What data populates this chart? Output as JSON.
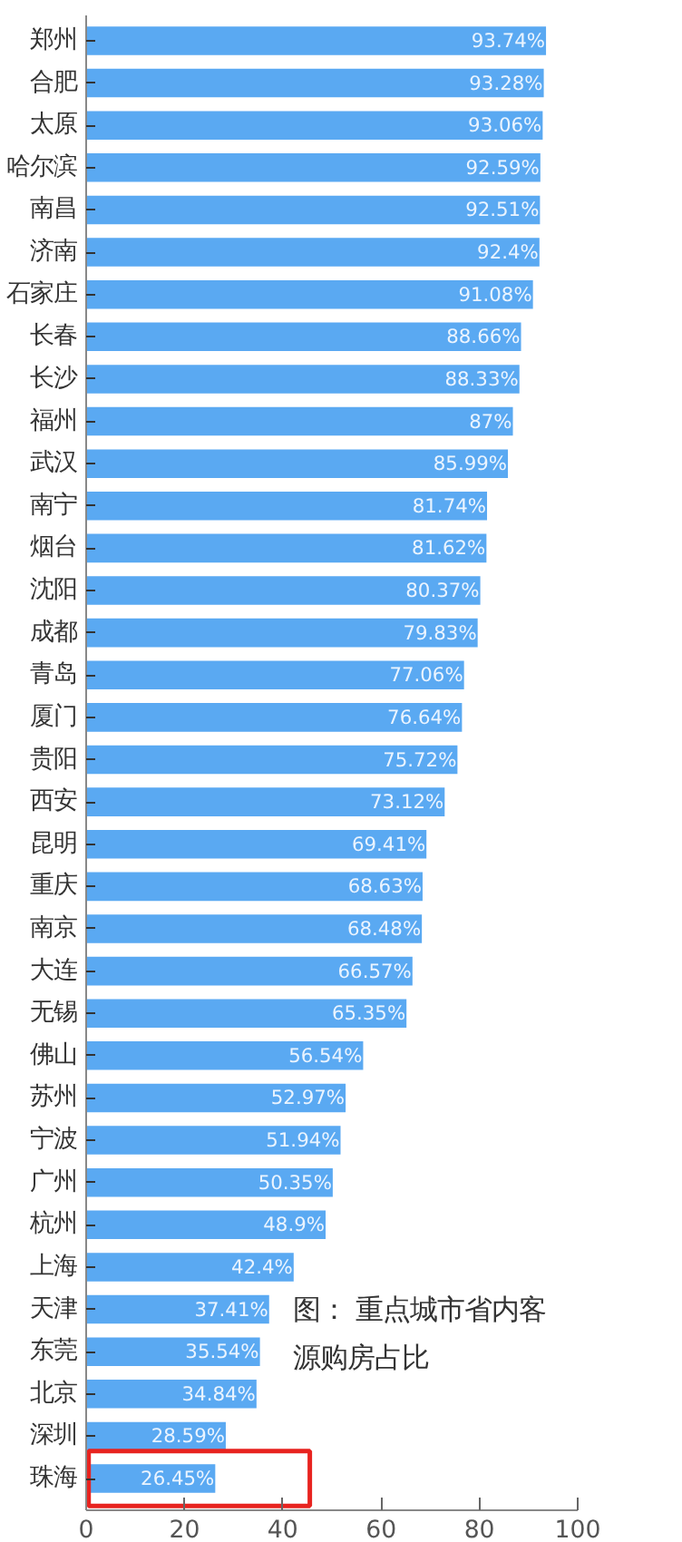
{
  "chart_data": {
    "type": "bar",
    "orientation": "horizontal",
    "categories": [
      "郑州",
      "合肥",
      "太原",
      "哈尔滨",
      "南昌",
      "济南",
      "石家庄",
      "长春",
      "长沙",
      "福州",
      "武汉",
      "南宁",
      "烟台",
      "沈阳",
      "成都",
      "青岛",
      "厦门",
      "贵阳",
      "西安",
      "昆明",
      "重庆",
      "南京",
      "大连",
      "无锡",
      "佛山",
      "苏州",
      "宁波",
      "广州",
      "杭州",
      "上海",
      "天津",
      "东莞",
      "北京",
      "深圳",
      "珠海"
    ],
    "values": [
      93.74,
      93.28,
      93.06,
      92.59,
      92.51,
      92.4,
      91.08,
      88.66,
      88.33,
      87,
      85.99,
      81.74,
      81.62,
      80.37,
      79.83,
      77.06,
      76.64,
      75.72,
      73.12,
      69.41,
      68.63,
      68.48,
      66.57,
      65.35,
      56.54,
      52.97,
      51.94,
      50.35,
      48.9,
      42.4,
      37.41,
      35.54,
      34.84,
      28.59,
      26.45
    ],
    "value_labels": [
      "93.74%",
      "93.28%",
      "93.06%",
      "92.59%",
      "92.51%",
      "92.4%",
      "91.08%",
      "88.66%",
      "88.33%",
      "87%",
      "85.99%",
      "81.74%",
      "81.62%",
      "80.37%",
      "79.83%",
      "77.06%",
      "76.64%",
      "75.72%",
      "73.12%",
      "69.41%",
      "68.63%",
      "68.48%",
      "66.57%",
      "65.35%",
      "56.54%",
      "52.97%",
      "51.94%",
      "50.35%",
      "48.9%",
      "42.4%",
      "37.41%",
      "35.54%",
      "34.84%",
      "28.59%",
      "26.45%"
    ],
    "color": "#5aa9f2",
    "xlim": [
      0,
      100
    ],
    "xticks": [
      0,
      20,
      40,
      60,
      80,
      100
    ],
    "annotations": [
      "图： 重点城市省内客源购房占比"
    ],
    "grid": false
  }
}
